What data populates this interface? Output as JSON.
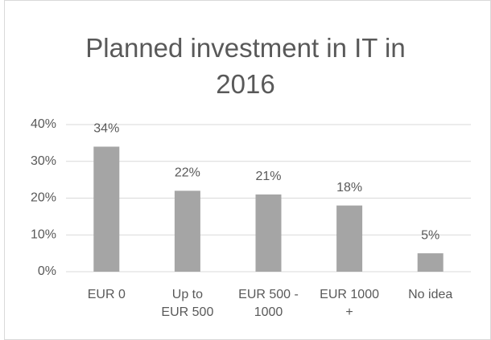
{
  "chart_data": {
    "type": "bar",
    "title": "Planned investment in IT in 2016",
    "categories": [
      "EUR 0",
      "Up to EUR 500",
      "EUR 500 - 1000",
      "EUR 1000 +",
      "No idea"
    ],
    "values": [
      34,
      22,
      21,
      18,
      5
    ],
    "value_labels": [
      "34%",
      "22%",
      "21%",
      "18%",
      "5%"
    ],
    "color": "#a5a5a5",
    "ylim": [
      0,
      40
    ],
    "yticks": [
      {
        "value": 0,
        "label": "0%"
      },
      {
        "value": 10,
        "label": "10%"
      },
      {
        "value": 20,
        "label": "20%"
      },
      {
        "value": 30,
        "label": "30%"
      },
      {
        "value": 40,
        "label": "40%"
      }
    ],
    "grid": true
  }
}
